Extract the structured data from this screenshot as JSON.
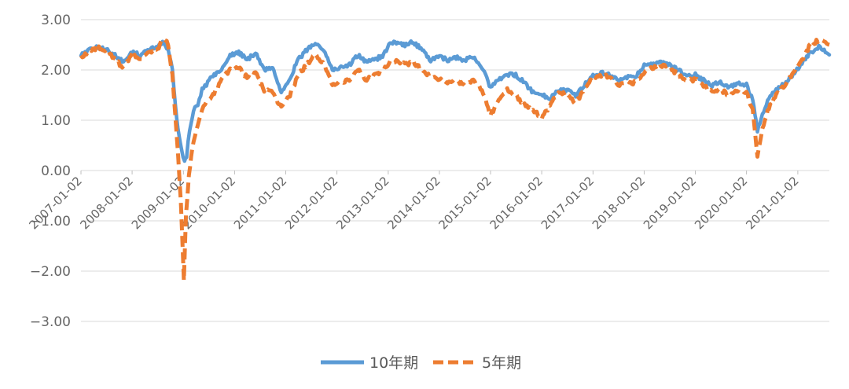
{
  "chart_data": {
    "type": "line",
    "title": "",
    "xlabel": "",
    "ylabel": "",
    "ylim": [
      -3.0,
      3.0
    ],
    "yticks": [
      "3.00",
      "2.00",
      "1.00",
      "0.00",
      "−1.00",
      "−2.00",
      "−3.00"
    ],
    "ytick_values": [
      3,
      2,
      1,
      0,
      -1,
      -2,
      -3
    ],
    "xticks": [
      "2007-01-02",
      "2008-01-02",
      "2009-01-02",
      "2010-01-02",
      "2011-01-02",
      "2012-01-02",
      "2013-01-02",
      "2014-01-02",
      "2015-01-02",
      "2016-01-02",
      "2017-01-02",
      "2018-01-02",
      "2019-01-02",
      "2020-01-02",
      "2021-01-02"
    ],
    "x_end": "2021-08-15",
    "grid": true,
    "legend_position": "bottom",
    "series": [
      {
        "name": "10年期",
        "color": "#5B9BD5",
        "style": "solid",
        "points": [
          [
            "2007-01-02",
            2.3
          ],
          [
            "2007-03-01",
            2.4
          ],
          [
            "2007-05-01",
            2.45
          ],
          [
            "2007-07-01",
            2.4
          ],
          [
            "2007-09-01",
            2.3
          ],
          [
            "2007-11-01",
            2.15
          ],
          [
            "2008-01-02",
            2.35
          ],
          [
            "2008-03-01",
            2.3
          ],
          [
            "2008-05-01",
            2.4
          ],
          [
            "2008-07-01",
            2.45
          ],
          [
            "2008-08-15",
            2.55
          ],
          [
            "2008-09-15",
            2.4
          ],
          [
            "2008-10-15",
            2.0
          ],
          [
            "2008-11-15",
            1.0
          ],
          [
            "2008-12-20",
            0.4
          ],
          [
            "2009-01-10",
            0.2
          ],
          [
            "2009-01-25",
            0.3
          ],
          [
            "2009-02-15",
            0.8
          ],
          [
            "2009-03-15",
            1.2
          ],
          [
            "2009-04-15",
            1.3
          ],
          [
            "2009-05-15",
            1.6
          ],
          [
            "2009-06-15",
            1.7
          ],
          [
            "2009-08-01",
            1.9
          ],
          [
            "2009-10-01",
            2.0
          ],
          [
            "2009-12-01",
            2.3
          ],
          [
            "2010-02-01",
            2.35
          ],
          [
            "2010-04-01",
            2.2
          ],
          [
            "2010-06-01",
            2.35
          ],
          [
            "2010-08-01",
            2.0
          ],
          [
            "2010-10-01",
            2.05
          ],
          [
            "2010-12-01",
            1.55
          ],
          [
            "2011-02-01",
            1.85
          ],
          [
            "2011-04-01",
            2.2
          ],
          [
            "2011-06-01",
            2.4
          ],
          [
            "2011-08-01",
            2.55
          ],
          [
            "2011-10-01",
            2.4
          ],
          [
            "2011-12-01",
            2.0
          ],
          [
            "2012-02-01",
            2.05
          ],
          [
            "2012-04-01",
            2.1
          ],
          [
            "2012-06-01",
            2.3
          ],
          [
            "2012-08-01",
            2.15
          ],
          [
            "2012-10-01",
            2.2
          ],
          [
            "2012-12-01",
            2.3
          ],
          [
            "2013-01-15",
            2.55
          ],
          [
            "2013-03-01",
            2.55
          ],
          [
            "2013-05-01",
            2.5
          ],
          [
            "2013-07-01",
            2.55
          ],
          [
            "2013-09-01",
            2.4
          ],
          [
            "2013-11-01",
            2.2
          ],
          [
            "2014-01-02",
            2.25
          ],
          [
            "2014-03-01",
            2.2
          ],
          [
            "2014-05-01",
            2.25
          ],
          [
            "2014-07-01",
            2.2
          ],
          [
            "2014-09-01",
            2.25
          ],
          [
            "2014-11-01",
            2.05
          ],
          [
            "2015-01-02",
            1.65
          ],
          [
            "2015-03-01",
            1.8
          ],
          [
            "2015-05-01",
            1.9
          ],
          [
            "2015-07-01",
            1.9
          ],
          [
            "2015-09-01",
            1.75
          ],
          [
            "2015-11-01",
            1.55
          ],
          [
            "2016-01-02",
            1.5
          ],
          [
            "2016-03-01",
            1.45
          ],
          [
            "2016-05-01",
            1.6
          ],
          [
            "2016-07-01",
            1.6
          ],
          [
            "2016-09-01",
            1.5
          ],
          [
            "2016-11-01",
            1.7
          ],
          [
            "2017-01-02",
            1.9
          ],
          [
            "2017-03-01",
            1.95
          ],
          [
            "2017-05-01",
            1.9
          ],
          [
            "2017-07-01",
            1.8
          ],
          [
            "2017-09-01",
            1.85
          ],
          [
            "2017-11-01",
            1.85
          ],
          [
            "2018-01-02",
            2.1
          ],
          [
            "2018-03-01",
            2.1
          ],
          [
            "2018-05-01",
            2.15
          ],
          [
            "2018-07-01",
            2.1
          ],
          [
            "2018-09-01",
            2.0
          ],
          [
            "2018-11-01",
            1.9
          ],
          [
            "2019-01-02",
            1.9
          ],
          [
            "2019-03-01",
            1.8
          ],
          [
            "2019-05-01",
            1.7
          ],
          [
            "2019-07-01",
            1.75
          ],
          [
            "2019-09-01",
            1.65
          ],
          [
            "2019-11-01",
            1.75
          ],
          [
            "2020-01-02",
            1.7
          ],
          [
            "2020-02-15",
            1.4
          ],
          [
            "2020-03-20",
            0.8
          ],
          [
            "2020-04-15",
            1.05
          ],
          [
            "2020-06-01",
            1.4
          ],
          [
            "2020-08-01",
            1.6
          ],
          [
            "2020-10-01",
            1.75
          ],
          [
            "2020-12-01",
            1.9
          ],
          [
            "2021-02-01",
            2.15
          ],
          [
            "2021-04-01",
            2.35
          ],
          [
            "2021-06-01",
            2.45
          ],
          [
            "2021-08-15",
            2.3
          ]
        ]
      },
      {
        "name": "5年期",
        "color": "#ED7D31",
        "style": "dashed",
        "points": [
          [
            "2007-01-02",
            2.25
          ],
          [
            "2007-03-01",
            2.35
          ],
          [
            "2007-05-01",
            2.45
          ],
          [
            "2007-07-01",
            2.4
          ],
          [
            "2007-09-01",
            2.2
          ],
          [
            "2007-11-01",
            2.05
          ],
          [
            "2008-01-02",
            2.3
          ],
          [
            "2008-03-01",
            2.2
          ],
          [
            "2008-05-01",
            2.35
          ],
          [
            "2008-07-01",
            2.4
          ],
          [
            "2008-08-15",
            2.65
          ],
          [
            "2008-09-15",
            2.5
          ],
          [
            "2008-10-15",
            1.9
          ],
          [
            "2008-11-15",
            0.7
          ],
          [
            "2008-12-15",
            -0.6
          ],
          [
            "2009-01-05",
            -2.2
          ],
          [
            "2009-01-20",
            -0.9
          ],
          [
            "2009-02-10",
            -0.1
          ],
          [
            "2009-03-15",
            0.6
          ],
          [
            "2009-04-15",
            0.9
          ],
          [
            "2009-05-15",
            1.2
          ],
          [
            "2009-06-15",
            1.4
          ],
          [
            "2009-08-01",
            1.5
          ],
          [
            "2009-10-01",
            1.8
          ],
          [
            "2009-12-01",
            2.0
          ],
          [
            "2010-02-01",
            2.05
          ],
          [
            "2010-04-01",
            1.85
          ],
          [
            "2010-06-01",
            1.95
          ],
          [
            "2010-08-01",
            1.6
          ],
          [
            "2010-10-01",
            1.55
          ],
          [
            "2010-12-01",
            1.25
          ],
          [
            "2011-02-01",
            1.5
          ],
          [
            "2011-04-01",
            1.9
          ],
          [
            "2011-06-01",
            2.1
          ],
          [
            "2011-08-01",
            2.3
          ],
          [
            "2011-10-01",
            2.1
          ],
          [
            "2011-12-01",
            1.7
          ],
          [
            "2012-02-01",
            1.75
          ],
          [
            "2012-04-01",
            1.8
          ],
          [
            "2012-06-01",
            2.0
          ],
          [
            "2012-08-01",
            1.8
          ],
          [
            "2012-10-01",
            1.9
          ],
          [
            "2012-12-01",
            2.0
          ],
          [
            "2013-01-15",
            2.15
          ],
          [
            "2013-03-01",
            2.2
          ],
          [
            "2013-05-01",
            2.1
          ],
          [
            "2013-07-01",
            2.15
          ],
          [
            "2013-09-01",
            2.0
          ],
          [
            "2013-11-01",
            1.85
          ],
          [
            "2014-01-02",
            1.8
          ],
          [
            "2014-03-01",
            1.75
          ],
          [
            "2014-05-01",
            1.8
          ],
          [
            "2014-07-01",
            1.7
          ],
          [
            "2014-09-01",
            1.8
          ],
          [
            "2014-11-01",
            1.6
          ],
          [
            "2015-01-02",
            1.1
          ],
          [
            "2015-03-01",
            1.4
          ],
          [
            "2015-05-01",
            1.6
          ],
          [
            "2015-07-01",
            1.5
          ],
          [
            "2015-09-01",
            1.3
          ],
          [
            "2015-11-01",
            1.2
          ],
          [
            "2016-01-02",
            1.05
          ],
          [
            "2016-03-01",
            1.3
          ],
          [
            "2016-05-01",
            1.55
          ],
          [
            "2016-07-01",
            1.5
          ],
          [
            "2016-09-01",
            1.35
          ],
          [
            "2016-11-01",
            1.6
          ],
          [
            "2017-01-02",
            1.85
          ],
          [
            "2017-03-01",
            1.9
          ],
          [
            "2017-05-01",
            1.85
          ],
          [
            "2017-07-01",
            1.7
          ],
          [
            "2017-09-01",
            1.75
          ],
          [
            "2017-11-01",
            1.75
          ],
          [
            "2018-01-02",
            1.95
          ],
          [
            "2018-03-01",
            2.05
          ],
          [
            "2018-05-01",
            2.1
          ],
          [
            "2018-07-01",
            2.05
          ],
          [
            "2018-09-01",
            1.9
          ],
          [
            "2018-11-01",
            1.8
          ],
          [
            "2019-01-02",
            1.8
          ],
          [
            "2019-03-01",
            1.7
          ],
          [
            "2019-05-01",
            1.55
          ],
          [
            "2019-07-01",
            1.6
          ],
          [
            "2019-09-01",
            1.5
          ],
          [
            "2019-11-01",
            1.6
          ],
          [
            "2020-01-02",
            1.55
          ],
          [
            "2020-02-15",
            1.2
          ],
          [
            "2020-03-20",
            0.25
          ],
          [
            "2020-04-15",
            0.7
          ],
          [
            "2020-06-01",
            1.2
          ],
          [
            "2020-08-01",
            1.5
          ],
          [
            "2020-10-01",
            1.7
          ],
          [
            "2020-12-01",
            1.95
          ],
          [
            "2021-02-01",
            2.2
          ],
          [
            "2021-04-01",
            2.5
          ],
          [
            "2021-06-01",
            2.6
          ],
          [
            "2021-08-15",
            2.5
          ]
        ]
      }
    ]
  }
}
